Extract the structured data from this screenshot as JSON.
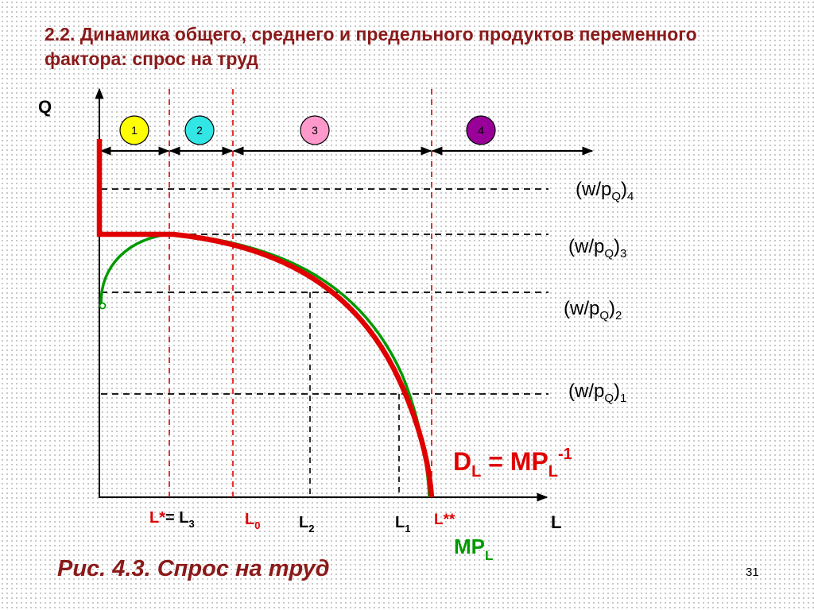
{
  "slide": {
    "title": "2.2. Динамика общего, среднего и предельного продуктов переменного фактора: спрос на труд",
    "caption": "Рис. 4.3. Спрос на труд",
    "page_number": "31"
  },
  "axes": {
    "y_label": "Q",
    "x_label": "L"
  },
  "stages": [
    {
      "label": "1",
      "color": "#ffff00"
    },
    {
      "label": "2",
      "color": "#33e6e6"
    },
    {
      "label": "3",
      "color": "#ff99cc"
    },
    {
      "label": "4",
      "color": "#990099"
    }
  ],
  "wage_levels": [
    {
      "base": "(w/p",
      "sub": "Q",
      "post": ")",
      "idx": "4"
    },
    {
      "base": "(w/p",
      "sub": "Q",
      "post": ")",
      "idx": "3"
    },
    {
      "base": "(w/p",
      "sub": "Q",
      "post": ")",
      "idx": "2"
    },
    {
      "base": "(w/p",
      "sub": "Q",
      "post": ")",
      "idx": "1"
    }
  ],
  "x_ticks": {
    "lstar": {
      "main": "L*",
      "eq": "= L",
      "sub": "3"
    },
    "l0": {
      "main": "L",
      "sub": "0"
    },
    "l2": {
      "main": "L",
      "sub": "2"
    },
    "l1": {
      "main": "L",
      "sub": "1"
    },
    "lstarstar": {
      "main": "L**"
    }
  },
  "curves": {
    "demand": {
      "d": "D",
      "dsub": "L",
      "eq": " = MP",
      "mpsub": "L",
      "sup": "-1",
      "color": "#e00000"
    },
    "mp": {
      "main": "MP",
      "sub": "L",
      "color": "#009900"
    }
  },
  "colors": {
    "title": "#8b1a1a",
    "red": "#e00000",
    "green": "#009900"
  }
}
